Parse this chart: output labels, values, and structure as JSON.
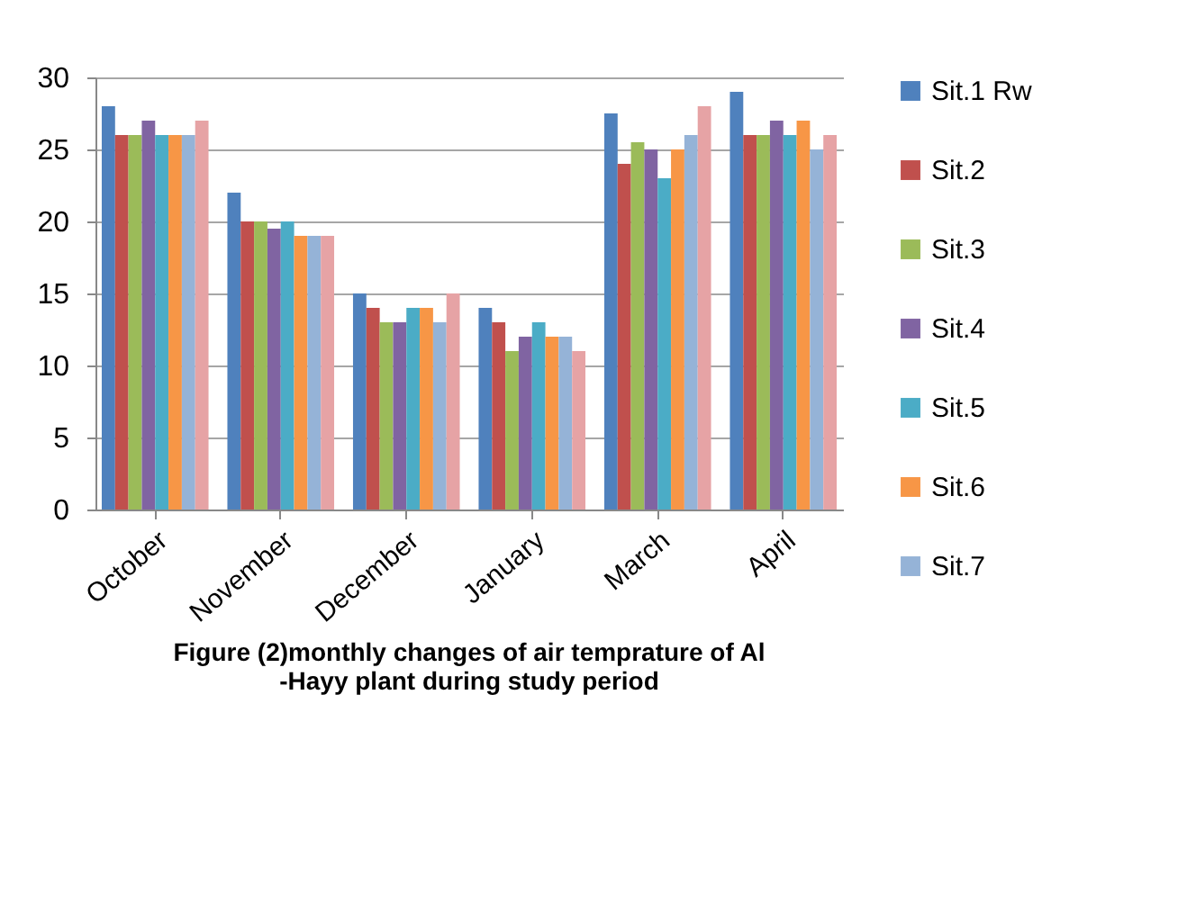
{
  "chart_data": {
    "type": "bar",
    "title": "Figure (2)monthly changes of air temprature of Al\n-Hayy plant during study period",
    "categories": [
      "October",
      "November",
      "December",
      "January",
      "March",
      "April"
    ],
    "series": [
      {
        "name": "Sit.1 Rw",
        "color": "#4f81bd",
        "values": [
          28,
          22,
          15,
          14,
          27.5,
          29
        ]
      },
      {
        "name": "Sit.2",
        "color": "#c0504d",
        "values": [
          26,
          20,
          14,
          13,
          24,
          26
        ]
      },
      {
        "name": "Sit.3",
        "color": "#9bbb59",
        "values": [
          26,
          20,
          13,
          11,
          25.5,
          26
        ]
      },
      {
        "name": "Sit.4",
        "color": "#8064a2",
        "values": [
          27,
          19.5,
          13,
          12,
          25,
          27
        ]
      },
      {
        "name": "Sit.5",
        "color": "#4bacc6",
        "values": [
          26,
          20,
          14,
          13,
          23,
          26
        ]
      },
      {
        "name": "Sit.6",
        "color": "#f79646",
        "values": [
          26,
          19,
          14,
          12,
          25,
          27
        ]
      },
      {
        "name": "Sit.7",
        "color": "#95b3d7",
        "values": [
          26,
          19,
          13,
          12,
          26,
          25
        ]
      },
      {
        "color": "#e6a3a5",
        "values": [
          27,
          19,
          15,
          11,
          28,
          26
        ]
      }
    ],
    "ylim": [
      0,
      30
    ],
    "yticks": [
      0,
      5,
      10,
      15,
      20,
      25,
      30
    ],
    "grid": "y",
    "legend": "right"
  }
}
